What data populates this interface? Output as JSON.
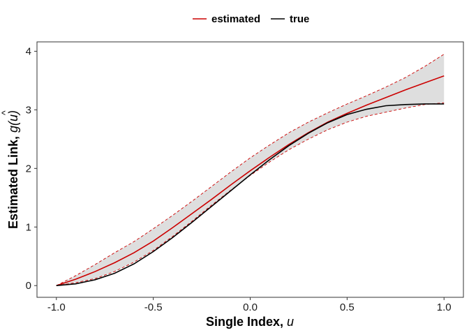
{
  "chart_data": {
    "type": "line",
    "xlabel": {
      "main": "Single Index, ",
      "var": "u"
    },
    "ylabel": {
      "main": "Estimated Link, ",
      "fn": "g",
      "hat": "^",
      "arg": "(u)"
    },
    "xlim": [
      -1.0,
      1.0
    ],
    "ylim": [
      0,
      4
    ],
    "x_ticks": [
      -1.0,
      -0.5,
      0.0,
      0.5,
      1.0
    ],
    "x_tick_labels": [
      "-1.0",
      "-0.5",
      "0.0",
      "0.5",
      "1.0"
    ],
    "y_ticks": [
      0,
      1,
      2,
      3,
      4
    ],
    "y_tick_labels": [
      "0",
      "1",
      "2",
      "3",
      "4"
    ],
    "grid": false,
    "legend_position": "top",
    "colors": {
      "estimated": "#cc0000",
      "true": "#000000",
      "band": "#dedede",
      "axes": "#333333"
    },
    "x": [
      -1.0,
      -0.9,
      -0.8,
      -0.7,
      -0.6,
      -0.5,
      -0.4,
      -0.3,
      -0.2,
      -0.1,
      0.0,
      0.1,
      0.2,
      0.3,
      0.4,
      0.5,
      0.6,
      0.7,
      0.8,
      0.9,
      1.0
    ],
    "series": [
      {
        "name": "estimated",
        "values": [
          0.0,
          0.11,
          0.24,
          0.39,
          0.56,
          0.76,
          0.99,
          1.23,
          1.47,
          1.72,
          1.96,
          2.19,
          2.41,
          2.61,
          2.79,
          2.94,
          3.08,
          3.21,
          3.34,
          3.46,
          3.58
        ]
      },
      {
        "name": "true",
        "values": [
          0.0,
          0.03,
          0.1,
          0.21,
          0.37,
          0.58,
          0.82,
          1.08,
          1.35,
          1.62,
          1.89,
          2.15,
          2.39,
          2.6,
          2.78,
          2.92,
          3.01,
          3.07,
          3.09,
          3.1,
          3.1
        ]
      }
    ],
    "band": {
      "lower": [
        0.0,
        0.05,
        0.12,
        0.24,
        0.4,
        0.6,
        0.84,
        1.1,
        1.37,
        1.63,
        1.88,
        2.11,
        2.32,
        2.5,
        2.66,
        2.79,
        2.89,
        2.96,
        3.03,
        3.09,
        3.12
      ],
      "upper": [
        0.0,
        0.17,
        0.36,
        0.56,
        0.75,
        0.97,
        1.2,
        1.44,
        1.69,
        1.94,
        2.18,
        2.4,
        2.61,
        2.79,
        2.95,
        3.1,
        3.24,
        3.39,
        3.55,
        3.74,
        3.95
      ]
    }
  }
}
